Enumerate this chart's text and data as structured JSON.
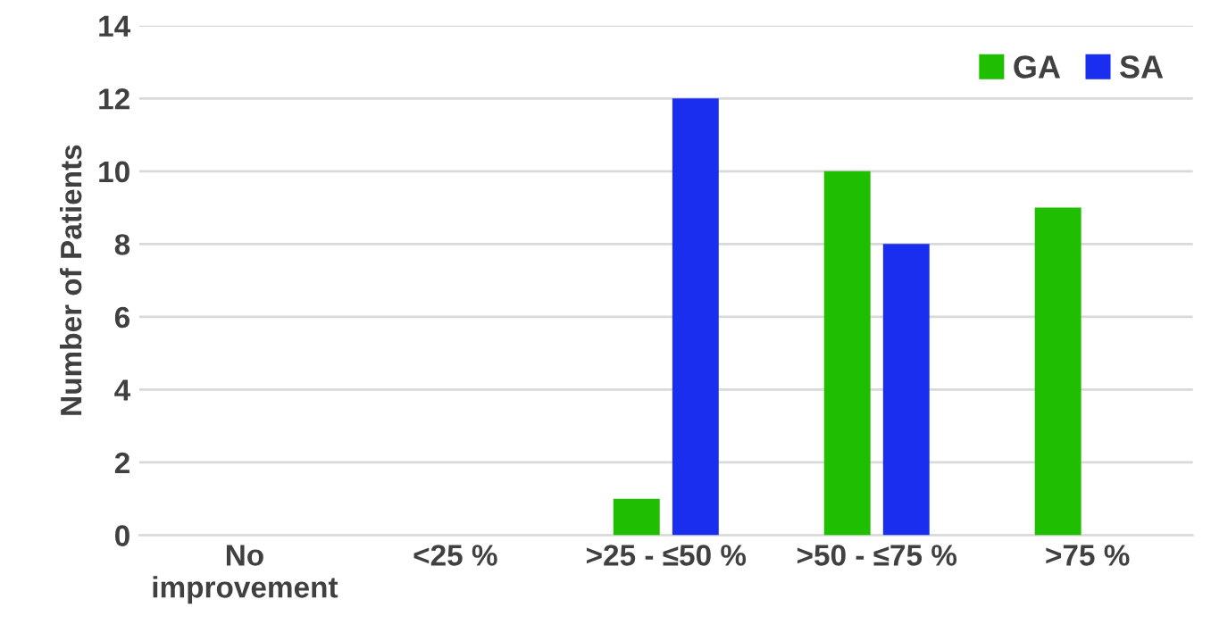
{
  "chart_data": {
    "type": "bar",
    "ylabel": "Number of Patients",
    "categories": [
      "No\nimprovement",
      "<25 %",
      ">25 - ≤50 %",
      ">50 - ≤75 %",
      ">75 %"
    ],
    "series": [
      {
        "name": "GA",
        "color": "#1fbf00",
        "values": [
          0,
          0,
          1,
          10,
          9
        ]
      },
      {
        "name": "SA",
        "color": "#1a2ef0",
        "values": [
          0,
          0,
          12,
          8,
          0
        ]
      }
    ],
    "ylim": [
      0,
      14
    ],
    "yticks": [
      0,
      2,
      4,
      6,
      8,
      10,
      12,
      14
    ],
    "grid": "y",
    "legend": "top right"
  }
}
